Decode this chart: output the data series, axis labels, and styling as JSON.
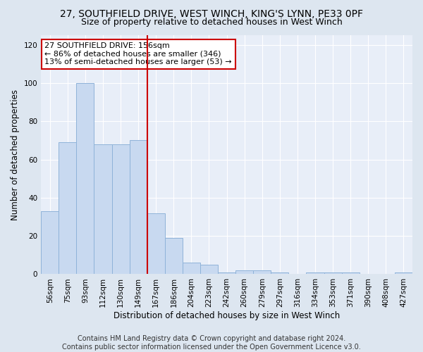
{
  "title": "27, SOUTHFIELD DRIVE, WEST WINCH, KING'S LYNN, PE33 0PF",
  "subtitle": "Size of property relative to detached houses in West Winch",
  "xlabel": "Distribution of detached houses by size in West Winch",
  "ylabel": "Number of detached properties",
  "categories": [
    "56sqm",
    "75sqm",
    "93sqm",
    "112sqm",
    "130sqm",
    "149sqm",
    "167sqm",
    "186sqm",
    "204sqm",
    "223sqm",
    "242sqm",
    "260sqm",
    "279sqm",
    "297sqm",
    "316sqm",
    "334sqm",
    "353sqm",
    "371sqm",
    "390sqm",
    "408sqm",
    "427sqm"
  ],
  "values": [
    33,
    69,
    100,
    68,
    68,
    70,
    32,
    19,
    6,
    5,
    1,
    2,
    2,
    1,
    0,
    1,
    1,
    1,
    0,
    0,
    1
  ],
  "bar_color": "#c8d9f0",
  "bar_edge_color": "#8fb3d9",
  "vline_x_index": 6,
  "vline_color": "#cc0000",
  "annotation_text": "27 SOUTHFIELD DRIVE: 156sqm\n← 86% of detached houses are smaller (346)\n13% of semi-detached houses are larger (53) →",
  "annotation_box_color": "#ffffff",
  "annotation_box_edge_color": "#cc0000",
  "ylim": [
    0,
    125
  ],
  "yticks": [
    0,
    20,
    40,
    60,
    80,
    100,
    120
  ],
  "footnote": "Contains HM Land Registry data © Crown copyright and database right 2024.\nContains public sector information licensed under the Open Government Licence v3.0.",
  "bg_color": "#dde6f0",
  "plot_bg_color": "#e8eef8",
  "title_fontsize": 10,
  "subtitle_fontsize": 9,
  "label_fontsize": 8.5,
  "tick_fontsize": 7.5,
  "annotation_fontsize": 8,
  "footnote_fontsize": 7
}
